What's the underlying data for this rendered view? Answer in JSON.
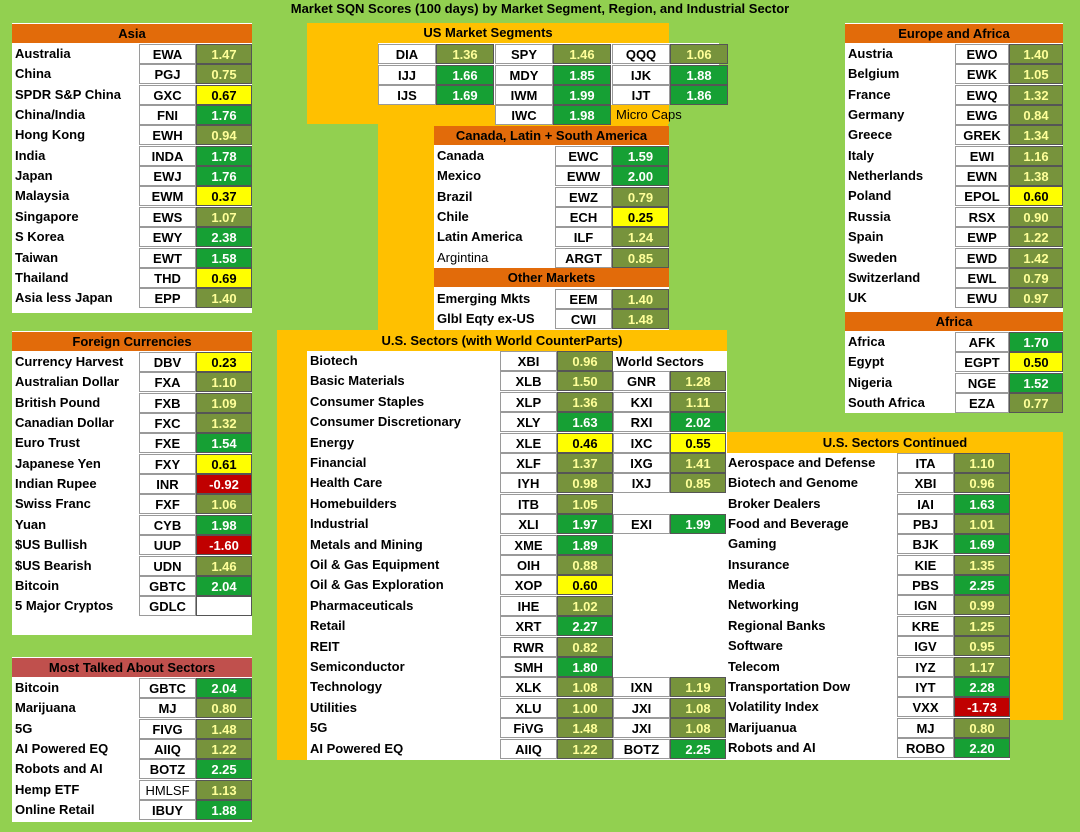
{
  "title": "Market SQN Scores (100 days) by Market Segment, Region, and Industrial Sector",
  "colors": {
    "background": "#92d050",
    "orange": "#ffc000",
    "header": "#e26b0a",
    "olive": "#77933c",
    "green": "#16a034",
    "yellow": "#ffff00",
    "red": "#c00000"
  },
  "asia": {
    "header": "Asia",
    "rows": [
      {
        "name": "Australia",
        "ticker": "EWA",
        "value": "1.47",
        "color": "g"
      },
      {
        "name": "China",
        "ticker": "PGJ",
        "value": "0.75",
        "color": "g"
      },
      {
        "name": "SPDR S&P China",
        "ticker": "GXC",
        "value": "0.67",
        "color": "y"
      },
      {
        "name": "China/India",
        "ticker": "FNI",
        "value": "1.76",
        "color": "dg"
      },
      {
        "name": "Hong Kong",
        "ticker": "EWH",
        "value": "0.94",
        "color": "g"
      },
      {
        "name": "India",
        "ticker": "INDA",
        "value": "1.78",
        "color": "dg"
      },
      {
        "name": "Japan",
        "ticker": "EWJ",
        "value": "1.76",
        "color": "dg"
      },
      {
        "name": "Malaysia",
        "ticker": "EWM",
        "value": "0.37",
        "color": "y"
      },
      {
        "name": "Singapore",
        "ticker": "EWS",
        "value": "1.07",
        "color": "g"
      },
      {
        "name": "S Korea",
        "ticker": "EWY",
        "value": "2.38",
        "color": "dg"
      },
      {
        "name": "Taiwan",
        "ticker": "EWT",
        "value": "1.58",
        "color": "dg"
      },
      {
        "name": "Thailand",
        "ticker": "THD",
        "value": "0.69",
        "color": "y"
      },
      {
        "name": "Asia less Japan",
        "ticker": "EPP",
        "value": "1.40",
        "color": "g"
      }
    ]
  },
  "currencies": {
    "header": "Foreign Currencies",
    "rows": [
      {
        "name": "Currency Harvest",
        "ticker": "DBV",
        "value": "0.23",
        "color": "y"
      },
      {
        "name": "Australian Dollar",
        "ticker": "FXA",
        "value": "1.10",
        "color": "g"
      },
      {
        "name": "British Pound",
        "ticker": "FXB",
        "value": "1.09",
        "color": "g"
      },
      {
        "name": "Canadian Dollar",
        "ticker": "FXC",
        "value": "1.32",
        "color": "g"
      },
      {
        "name": "Euro Trust",
        "ticker": "FXE",
        "value": "1.54",
        "color": "dg"
      },
      {
        "name": "Japanese Yen",
        "ticker": "FXY",
        "value": "0.61",
        "color": "y"
      },
      {
        "name": "Indian Rupee",
        "ticker": "INR",
        "value": "-0.92",
        "color": "r"
      },
      {
        "name": "Swiss Franc",
        "ticker": "FXF",
        "value": "1.06",
        "color": "g"
      },
      {
        "name": "Yuan",
        "ticker": "CYB",
        "value": "1.98",
        "color": "dg"
      },
      {
        "name": "$US Bullish",
        "ticker": "UUP",
        "value": "-1.60",
        "color": "r"
      },
      {
        "name": "$US Bearish",
        "ticker": "UDN",
        "value": "1.46",
        "color": "g"
      },
      {
        "name": "Bitcoin",
        "ticker": "GBTC",
        "value": "2.04",
        "color": "dg"
      },
      {
        "name": "5 Major Cryptos",
        "ticker": "GDLC",
        "value": "",
        "color": "w"
      }
    ]
  },
  "most_talked": {
    "header": "Most Talked About Sectors",
    "rows": [
      {
        "name": "Bitcoin",
        "ticker": "GBTC",
        "value": "2.04",
        "color": "dg"
      },
      {
        "name": "Marijuana",
        "ticker": "MJ",
        "value": "0.80",
        "color": "g"
      },
      {
        "name": "5G",
        "ticker": "FIVG",
        "value": "1.48",
        "color": "g"
      },
      {
        "name": "AI Powered EQ",
        "ticker": "AIIQ",
        "value": "1.22",
        "color": "g"
      },
      {
        "name": "Robots and AI",
        "ticker": "BOTZ",
        "value": "2.25",
        "color": "dg"
      },
      {
        "name": "Hemp ETF",
        "ticker": "HMLSF",
        "value": "1.13",
        "color": "g",
        "plain_ticker": true
      },
      {
        "name": "Online Retail",
        "ticker": "IBUY",
        "value": "1.88",
        "color": "dg"
      }
    ]
  },
  "us_segments": {
    "header": "US Market Segments",
    "grid": [
      [
        {
          "ticker": "DIA",
          "value": "1.36",
          "color": "g"
        },
        {
          "ticker": "SPY",
          "value": "1.46",
          "color": "g"
        },
        {
          "ticker": "QQQ",
          "value": "1.06",
          "color": "g"
        }
      ],
      [
        {
          "ticker": "IJJ",
          "value": "1.66",
          "color": "dg"
        },
        {
          "ticker": "MDY",
          "value": "1.85",
          "color": "dg"
        },
        {
          "ticker": "IJK",
          "value": "1.88",
          "color": "dg"
        }
      ],
      [
        {
          "ticker": "IJS",
          "value": "1.69",
          "color": "dg"
        },
        {
          "ticker": "IWM",
          "value": "1.99",
          "color": "dg"
        },
        {
          "ticker": "IJT",
          "value": "1.86",
          "color": "dg"
        }
      ]
    ],
    "microcap": {
      "ticker": "IWC",
      "value": "1.98",
      "color": "dg",
      "label": "Micro Caps"
    }
  },
  "americas": {
    "header": "Canada, Latin + South America",
    "rows": [
      {
        "name": "Canada",
        "ticker": "EWC",
        "value": "1.59",
        "color": "dg"
      },
      {
        "name": "Mexico",
        "ticker": "EWW",
        "value": "2.00",
        "color": "dg"
      },
      {
        "name": "Brazil",
        "ticker": "EWZ",
        "value": "0.79",
        "color": "g"
      },
      {
        "name": "Chile",
        "ticker": "ECH",
        "value": "0.25",
        "color": "y"
      },
      {
        "name": "Latin America",
        "ticker": "ILF",
        "value": "1.24",
        "color": "g"
      },
      {
        "name": "Argintina",
        "ticker": "ARGT",
        "value": "0.85",
        "color": "g",
        "plain_name": true
      }
    ]
  },
  "other_markets": {
    "header": "Other Markets",
    "rows": [
      {
        "name": "Emerging Mkts",
        "ticker": "EEM",
        "value": "1.40",
        "color": "g"
      },
      {
        "name": "Glbl Eqty ex-US",
        "ticker": "CWI",
        "value": "1.48",
        "color": "g"
      }
    ]
  },
  "us_sectors": {
    "header": "U.S. Sectors (with World CounterParts)",
    "world_header": "World Sectors",
    "rows": [
      {
        "name": "Biotech",
        "ticker": "XBI",
        "value": "0.96",
        "color": "g"
      },
      {
        "name": "Basic Materials",
        "ticker": "XLB",
        "value": "1.50",
        "color": "g",
        "wt": "GNR",
        "wv": "1.28",
        "wc": "g"
      },
      {
        "name": "Consumer Staples",
        "ticker": "XLP",
        "value": "1.36",
        "color": "g",
        "wt": "KXI",
        "wv": "1.11",
        "wc": "g"
      },
      {
        "name": "Consumer Discretionary",
        "ticker": "XLY",
        "value": "1.63",
        "color": "dg",
        "wt": "RXI",
        "wv": "2.02",
        "wc": "dg"
      },
      {
        "name": "Energy",
        "ticker": "XLE",
        "value": "0.46",
        "color": "y",
        "wt": "IXC",
        "wv": "0.55",
        "wc": "y"
      },
      {
        "name": "Financial",
        "ticker": "XLF",
        "value": "1.37",
        "color": "g",
        "wt": "IXG",
        "wv": "1.41",
        "wc": "g"
      },
      {
        "name": "Health Care",
        "ticker": "IYH",
        "value": "0.98",
        "color": "g",
        "wt": "IXJ",
        "wv": "0.85",
        "wc": "g"
      },
      {
        "name": "Homebuilders",
        "ticker": "ITB",
        "value": "1.05",
        "color": "g"
      },
      {
        "name": "Industrial",
        "ticker": "XLI",
        "value": "1.97",
        "color": "dg",
        "wt": "EXI",
        "wv": "1.99",
        "wc": "dg"
      },
      {
        "name": "Metals and Mining",
        "ticker": "XME",
        "value": "1.89",
        "color": "dg"
      },
      {
        "name": "Oil & Gas Equipment",
        "ticker": "OIH",
        "value": "0.88",
        "color": "g"
      },
      {
        "name": "Oil & Gas Exploration",
        "ticker": "XOP",
        "value": "0.60",
        "color": "y"
      },
      {
        "name": "Pharmaceuticals",
        "ticker": "IHE",
        "value": "1.02",
        "color": "g"
      },
      {
        "name": "Retail",
        "ticker": "XRT",
        "value": "2.27",
        "color": "dg"
      },
      {
        "name": "REIT",
        "ticker": "RWR",
        "value": "0.82",
        "color": "g"
      },
      {
        "name": "Semiconductor",
        "ticker": "SMH",
        "value": "1.80",
        "color": "dg"
      },
      {
        "name": "Technology",
        "ticker": "XLK",
        "value": "1.08",
        "color": "g",
        "wt": "IXN",
        "wv": "1.19",
        "wc": "g"
      },
      {
        "name": "Utilities",
        "ticker": "XLU",
        "value": "1.00",
        "color": "g",
        "wt": "JXI",
        "wv": "1.08",
        "wc": "g"
      },
      {
        "name": "5G",
        "ticker": "FiVG",
        "value": "1.48",
        "color": "g",
        "wt": "JXI",
        "wv": "1.08",
        "wc": "g"
      },
      {
        "name": "AI Powered EQ",
        "ticker": "AIIQ",
        "value": "1.22",
        "color": "g",
        "wt": "BOTZ",
        "wv": "2.25",
        "wc": "dg"
      }
    ]
  },
  "europe_africa": {
    "header": "Europe and Africa",
    "rows": [
      {
        "name": "Austria",
        "ticker": "EWO",
        "value": "1.40",
        "color": "g"
      },
      {
        "name": "Belgium",
        "ticker": "EWK",
        "value": "1.05",
        "color": "g"
      },
      {
        "name": "France",
        "ticker": "EWQ",
        "value": "1.32",
        "color": "g"
      },
      {
        "name": "Germany",
        "ticker": "EWG",
        "value": "0.84",
        "color": "g"
      },
      {
        "name": "Greece",
        "ticker": "GREK",
        "value": "1.34",
        "color": "g"
      },
      {
        "name": "Italy",
        "ticker": "EWI",
        "value": "1.16",
        "color": "g"
      },
      {
        "name": "Netherlands",
        "ticker": "EWN",
        "value": "1.38",
        "color": "g"
      },
      {
        "name": "Poland",
        "ticker": "EPOL",
        "value": "0.60",
        "color": "y"
      },
      {
        "name": "Russia",
        "ticker": "RSX",
        "value": "0.90",
        "color": "g"
      },
      {
        "name": "Spain",
        "ticker": "EWP",
        "value": "1.22",
        "color": "g"
      },
      {
        "name": "Sweden",
        "ticker": "EWD",
        "value": "1.42",
        "color": "g"
      },
      {
        "name": "Switzerland",
        "ticker": "EWL",
        "value": "0.79",
        "color": "g"
      },
      {
        "name": "UK",
        "ticker": "EWU",
        "value": "0.97",
        "color": "g"
      }
    ]
  },
  "africa": {
    "header": "Africa",
    "rows": [
      {
        "name": "Africa",
        "ticker": "AFK",
        "value": "1.70",
        "color": "dg"
      },
      {
        "name": "Egypt",
        "ticker": "EGPT",
        "value": "0.50",
        "color": "y"
      },
      {
        "name": "Nigeria",
        "ticker": "NGE",
        "value": "1.52",
        "color": "dg"
      },
      {
        "name": "South Africa",
        "ticker": "EZA",
        "value": "0.77",
        "color": "g"
      }
    ]
  },
  "us_continued": {
    "header": "U.S. Sectors Continued",
    "rows": [
      {
        "name": "Aerospace and Defense",
        "ticker": "ITA",
        "value": "1.10",
        "color": "g"
      },
      {
        "name": "Biotech and Genome",
        "ticker": "XBI",
        "value": "0.96",
        "color": "g"
      },
      {
        "name": "Broker Dealers",
        "ticker": "IAI",
        "value": "1.63",
        "color": "dg"
      },
      {
        "name": "Food and Beverage",
        "ticker": "PBJ",
        "value": "1.01",
        "color": "g"
      },
      {
        "name": "Gaming",
        "ticker": "BJK",
        "value": "1.69",
        "color": "dg"
      },
      {
        "name": "Insurance",
        "ticker": "KIE",
        "value": "1.35",
        "color": "g"
      },
      {
        "name": "Media",
        "ticker": "PBS",
        "value": "2.25",
        "color": "dg"
      },
      {
        "name": "Networking",
        "ticker": "IGN",
        "value": "0.99",
        "color": "g"
      },
      {
        "name": "Regional Banks",
        "ticker": "KRE",
        "value": "1.25",
        "color": "g"
      },
      {
        "name": "Software",
        "ticker": "IGV",
        "value": "0.95",
        "color": "g"
      },
      {
        "name": "Telecom",
        "ticker": "IYZ",
        "value": "1.17",
        "color": "g"
      },
      {
        "name": "Transportation Dow",
        "ticker": "IYT",
        "value": "2.28",
        "color": "dg"
      },
      {
        "name": "Volatility Index",
        "ticker": "VXX",
        "value": "-1.73",
        "color": "r"
      },
      {
        "name": "Marijuanua",
        "ticker": "MJ",
        "value": "0.80",
        "color": "g"
      },
      {
        "name": "Robots and AI",
        "ticker": "ROBO",
        "value": "2.20",
        "color": "dg"
      }
    ]
  }
}
